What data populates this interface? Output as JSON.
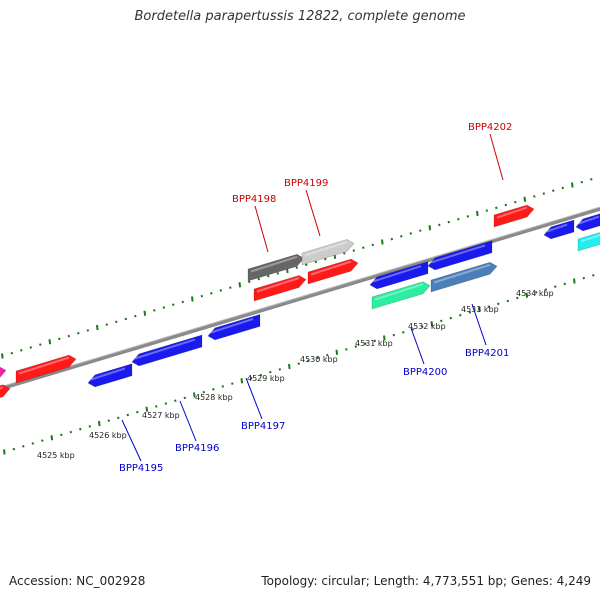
{
  "title": "Bordetella parapertussis 12822, complete genome",
  "footer": {
    "accession": "Accession: NC_002928",
    "summary": "Topology: circular; Length: 4,773,551 bp; Genes: 4,249"
  },
  "colors": {
    "forward_label": "#cc0000",
    "reverse_label": "#0000cc",
    "backbone": "#888888",
    "tick": "#1a7a1a",
    "red": "#ff1a1a",
    "blue": "#1a1aee",
    "gray_dark": "#666666",
    "gray_light": "#cccccc",
    "teal": "#2aeea0",
    "steel": "#4a7fb8",
    "cyan": "#22eeee",
    "magenta": "#ee22aa"
  },
  "scale_labels": [
    "4525 kbp",
    "4526 kbp",
    "4527 kbp",
    "4528 kbp",
    "4529 kbp",
    "4530 kbp",
    "4531 kbp",
    "4532 kbp",
    "4533 kbp",
    "4534 kbp"
  ],
  "gene_labels": {
    "forward": [
      "BPP4198",
      "BPP4199",
      "BPP4202"
    ],
    "reverse": [
      "BPP4195",
      "BPP4196",
      "BPP4197",
      "BPP4200",
      "BPP4201"
    ]
  }
}
